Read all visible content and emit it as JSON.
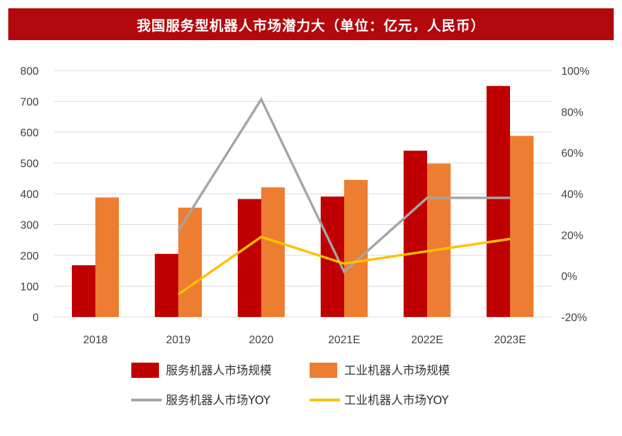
{
  "chart_data": {
    "type": "bar",
    "title": "我国服务型机器人市场潜力大（单位：亿元，人民币）",
    "categories": [
      "2018",
      "2019",
      "2020",
      "2021E",
      "2022E",
      "2023E"
    ],
    "series": [
      {
        "name": "服务机器人市场规模",
        "kind": "bar",
        "axis": "left",
        "color": "#c00000",
        "values": [
          168,
          205,
          383,
          391,
          540,
          750
        ]
      },
      {
        "name": "工业机器人市场规模",
        "kind": "bar",
        "axis": "left",
        "color": "#ed7d31",
        "values": [
          388,
          355,
          421,
          445,
          498,
          588
        ]
      },
      {
        "name": "服务机器人市场YOY",
        "kind": "line",
        "axis": "right",
        "color": "#a5a5a5",
        "values": [
          null,
          22,
          86,
          2,
          38,
          38
        ]
      },
      {
        "name": "工业机器人市场YOY",
        "kind": "line",
        "axis": "right",
        "color": "#ffc000",
        "values": [
          null,
          -9,
          19,
          6,
          12,
          18
        ]
      }
    ],
    "y_left": {
      "min": 0,
      "max": 800,
      "step": 100,
      "ticks": [
        "0",
        "100",
        "200",
        "300",
        "400",
        "500",
        "600",
        "700",
        "800"
      ]
    },
    "y_right": {
      "min": -20,
      "max": 100,
      "step": 20,
      "ticks": [
        "-20%",
        "0%",
        "20%",
        "40%",
        "60%",
        "80%",
        "100%"
      ]
    },
    "grid": true,
    "legend_position": "bottom"
  }
}
